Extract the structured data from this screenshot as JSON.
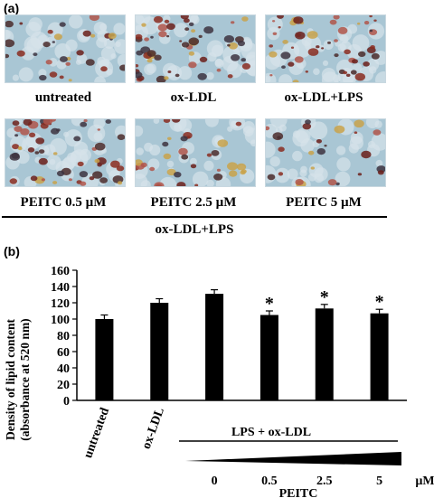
{
  "panel_a": {
    "label": "(a)",
    "images": [
      {
        "caption": "untreated"
      },
      {
        "caption": "ox-LDL"
      },
      {
        "caption": "ox-LDL+LPS"
      },
      {
        "caption": "PEITC 0.5 µM"
      },
      {
        "caption": "PEITC 2.5 µM"
      },
      {
        "caption": "PEITC 5 µM"
      }
    ],
    "group_label": "ox-LDL+LPS"
  },
  "panel_b": {
    "label": "(b)",
    "group_label": "LPS + ox-LDL",
    "unit": "µM",
    "dose_axis_label": "PEITC"
  },
  "chart_data": {
    "type": "bar",
    "ylabel": "Density of lipid content (absorbance at 520 nm)",
    "ylabel_lines": [
      "Density of lipid content",
      "(absorbance at 520 nm)"
    ],
    "ylim": [
      0,
      160
    ],
    "yticks": [
      0,
      20,
      40,
      60,
      80,
      100,
      120,
      140,
      160
    ],
    "categories": [
      "untreated",
      "ox-LDL",
      "0",
      "0.5",
      "2.5",
      "5"
    ],
    "values": [
      100,
      120,
      131,
      105,
      113,
      107
    ],
    "errors": [
      5,
      5,
      5,
      5,
      5,
      5
    ],
    "significance": [
      "",
      "",
      "",
      "*",
      "*",
      "*"
    ],
    "bar_color": "#000000",
    "grid": false,
    "legend": false
  }
}
